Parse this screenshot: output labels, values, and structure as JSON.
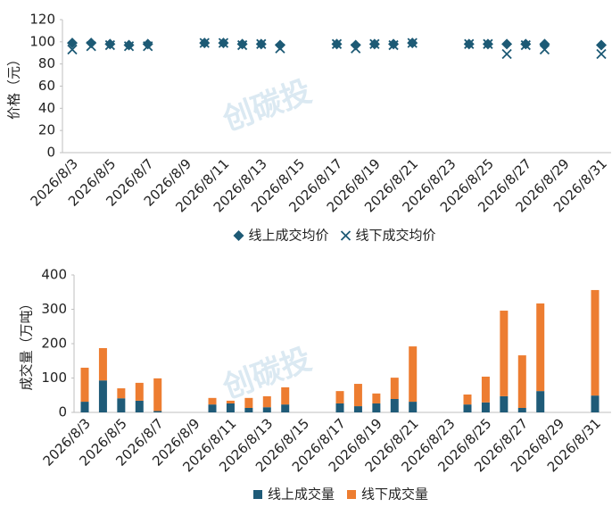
{
  "watermark": "创碳投",
  "chart_data": [
    {
      "type": "scatter",
      "y_label": "价格（元）",
      "categories": [
        "2026/8/3",
        null,
        "2026/8/5",
        null,
        "2026/8/7",
        null,
        "2026/8/9",
        null,
        "2026/8/11",
        null,
        "2026/8/13",
        null,
        "2026/8/15",
        null,
        "2026/8/17",
        null,
        "2026/8/19",
        null,
        "2026/8/21",
        null,
        "2026/8/23",
        null,
        "2026/8/25",
        null,
        "2026/8/27",
        null,
        "2026/8/29",
        null,
        "2026/8/31"
      ],
      "series": [
        {
          "name": "线上成交均价",
          "color": "#1d5a75",
          "marker": "diamond",
          "values": [
            99,
            99,
            98,
            97,
            98,
            null,
            null,
            99,
            99,
            98,
            98,
            97,
            null,
            null,
            98,
            97,
            98,
            98,
            99,
            null,
            null,
            98,
            98,
            98,
            98,
            98,
            null,
            null,
            97
          ]
        },
        {
          "name": "线下成交均价",
          "color": "#1d5a75",
          "marker": "x",
          "values": [
            93,
            96,
            97,
            96,
            96,
            null,
            null,
            99,
            99,
            97,
            98,
            94,
            null,
            null,
            98,
            94,
            98,
            97,
            99,
            null,
            null,
            98,
            98,
            89,
            97,
            93,
            null,
            null,
            89
          ]
        }
      ],
      "ylim": [
        0,
        120
      ],
      "yticks": [
        0,
        20,
        40,
        60,
        80,
        100,
        120
      ]
    },
    {
      "type": "bar",
      "stacked": true,
      "y_label": "成交量（万吨）",
      "categories": [
        "2026/8/3",
        null,
        "2026/8/5",
        null,
        "2026/8/7",
        null,
        "2026/8/9",
        null,
        "2026/8/11",
        null,
        "2026/8/13",
        null,
        "2026/8/15",
        null,
        "2026/8/17",
        null,
        "2026/8/19",
        null,
        "2026/8/21",
        null,
        "2026/8/23",
        null,
        "2026/8/25",
        null,
        "2026/8/27",
        null,
        "2026/8/29",
        null,
        "2026/8/31"
      ],
      "series": [
        {
          "name": "线上成交量",
          "color": "#1f5b78",
          "values": [
            31,
            93,
            41,
            34,
            4,
            null,
            null,
            23,
            26,
            13,
            15,
            23,
            null,
            null,
            26,
            18,
            26,
            39,
            31,
            null,
            null,
            23,
            29,
            47,
            13,
            62,
            null,
            null,
            49
          ]
        },
        {
          "name": "线下成交量",
          "color": "#ed7d31",
          "values": [
            99,
            94,
            29,
            52,
            95,
            null,
            null,
            19,
            8,
            29,
            32,
            50,
            null,
            null,
            36,
            65,
            29,
            62,
            161,
            null,
            null,
            29,
            75,
            249,
            153,
            255,
            null,
            null,
            307
          ]
        }
      ],
      "ylim": [
        0,
        400
      ],
      "yticks": [
        0,
        100,
        200,
        300,
        400
      ]
    }
  ]
}
